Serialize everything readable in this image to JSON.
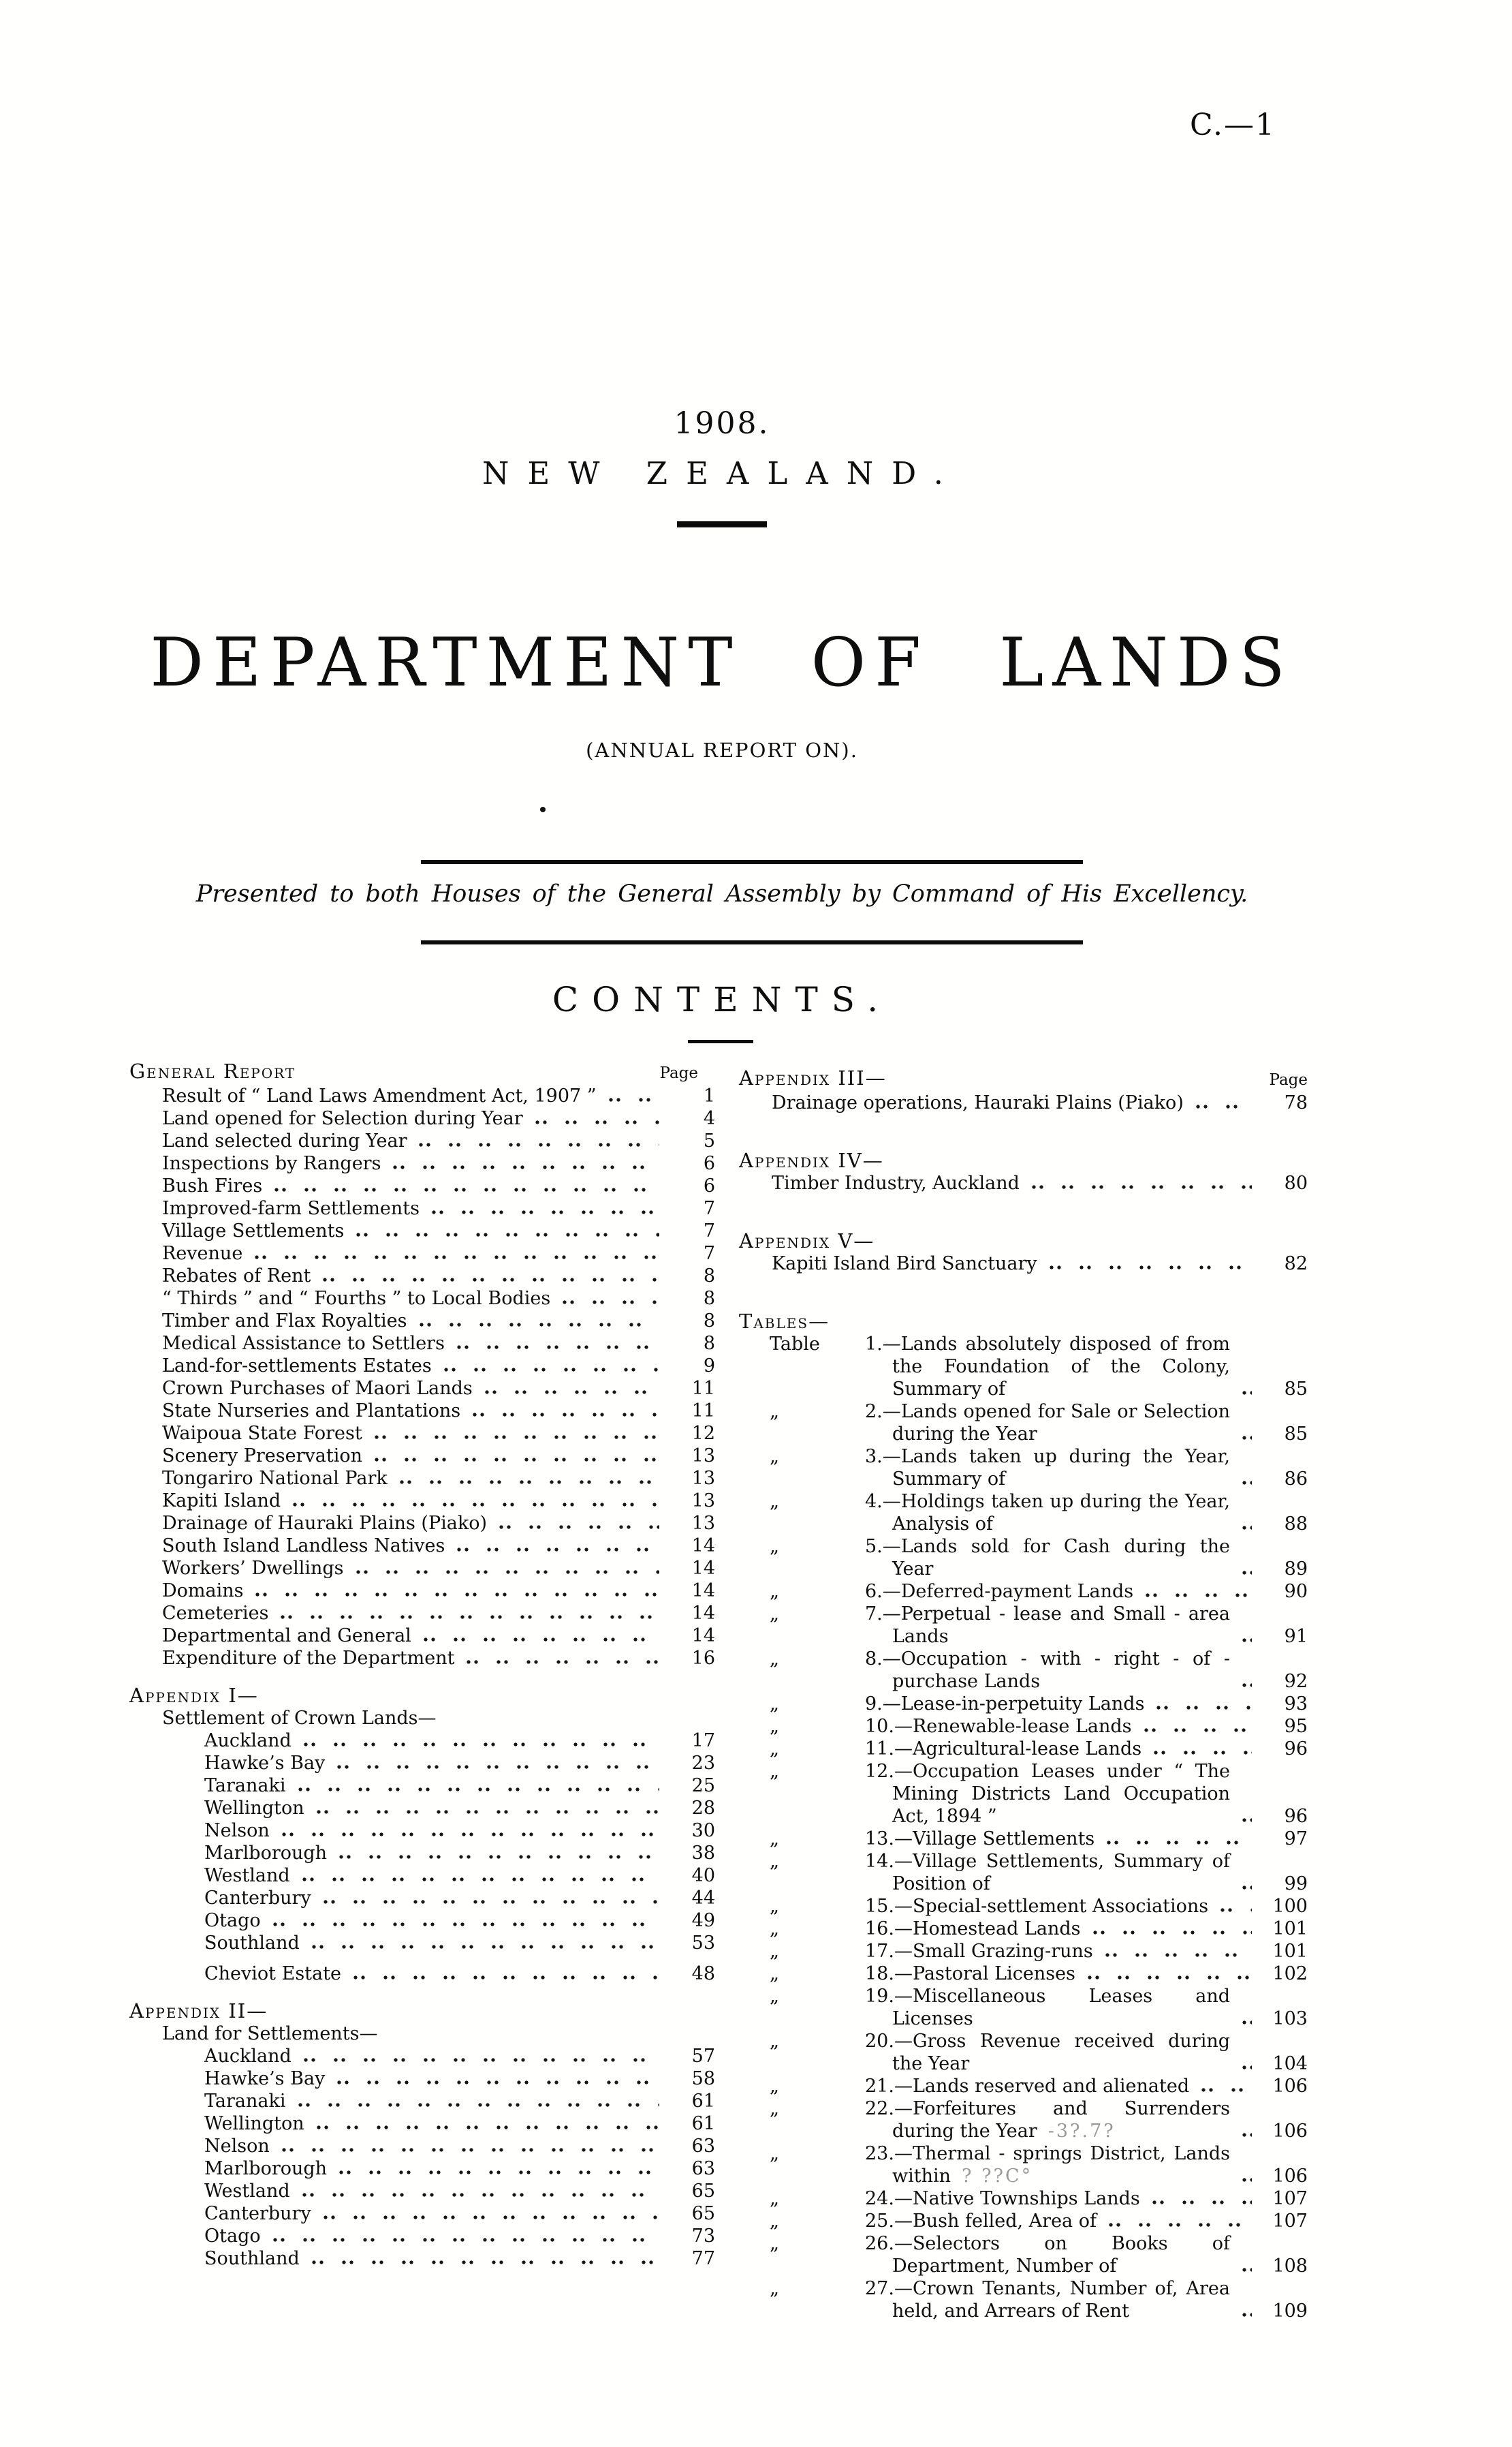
{
  "header": {
    "doc_ref": "C.—1",
    "year": "1908.",
    "country": "NEW ZEALAND.",
    "title": "DEPARTMENT OF LANDS",
    "subtitle": "(ANNUAL REPORT ON).",
    "presented": "Presented to both Houses of the General Assembly by Command of His Excellency.",
    "contents_title": "CONTENTS."
  },
  "contents": {
    "left": {
      "sections": [
        {
          "header": "General Report",
          "page_label": "Page",
          "items": [
            {
              "label": "Result of “ Land Laws Amendment Act, 1907 ”",
              "page": "1",
              "indent": 1
            },
            {
              "label": "Land opened for Selection during Year",
              "page": "4",
              "indent": 1
            },
            {
              "label": "Land selected during Year",
              "page": "5",
              "indent": 1
            },
            {
              "label": "Inspections by Rangers",
              "page": "6",
              "indent": 1
            },
            {
              "label": "Bush Fires",
              "page": "6",
              "indent": 1
            },
            {
              "label": "Improved-farm Settlements",
              "page": "7",
              "indent": 1
            },
            {
              "label": "Village Settlements",
              "page": "7",
              "indent": 1
            },
            {
              "label": "Revenue",
              "page": "7",
              "indent": 1
            },
            {
              "label": "Rebates of Rent",
              "page": "8",
              "indent": 1
            },
            {
              "label": "“ Thirds ” and “ Fourths ” to Local Bodies",
              "page": "8",
              "indent": 1
            },
            {
              "label": "Timber and Flax Royalties",
              "page": "8",
              "indent": 1
            },
            {
              "label": "Medical Assistance to Settlers",
              "page": "8",
              "indent": 1
            },
            {
              "label": "Land-for-settlements Estates",
              "page": "9",
              "indent": 1
            },
            {
              "label": "Crown Purchases of Maori Lands",
              "page": "11",
              "indent": 1
            },
            {
              "label": "State Nurseries and Plantations",
              "page": "11",
              "indent": 1
            },
            {
              "label": "Waipoua State Forest",
              "page": "12",
              "indent": 1
            },
            {
              "label": "Scenery Preservation",
              "page": "13",
              "indent": 1
            },
            {
              "label": "Tongariro National Park",
              "page": "13",
              "indent": 1
            },
            {
              "label": "Kapiti Island",
              "page": "13",
              "indent": 1
            },
            {
              "label": "Drainage of Hauraki Plains (Piako)",
              "page": "13",
              "indent": 1
            },
            {
              "label": "South Island Landless Natives",
              "page": "14",
              "indent": 1
            },
            {
              "label": "Workers’ Dwellings",
              "page": "14",
              "indent": 1
            },
            {
              "label": "Domains",
              "page": "14",
              "indent": 1
            },
            {
              "label": "Cemeteries",
              "page": "14",
              "indent": 1
            },
            {
              "label": "Departmental and General",
              "page": "14",
              "indent": 1
            },
            {
              "label": "Expenditure of the Department",
              "page": "16",
              "indent": 1
            }
          ]
        },
        {
          "header": "Appendix I—",
          "subheader": "Settlement of Crown Lands—",
          "items": [
            {
              "label": "Auckland",
              "page": "17",
              "indent": 2
            },
            {
              "label": "Hawke’s Bay",
              "page": "23",
              "indent": 2
            },
            {
              "label": "Taranaki",
              "page": "25",
              "indent": 2
            },
            {
              "label": "Wellington",
              "page": "28",
              "indent": 2
            },
            {
              "label": "Nelson",
              "page": "30",
              "indent": 2
            },
            {
              "label": "Marlborough",
              "page": "38",
              "indent": 2
            },
            {
              "label": "Westland",
              "page": "40",
              "indent": 2
            },
            {
              "label": "Canterbury",
              "page": "44",
              "indent": 2
            },
            {
              "label": "Otago",
              "page": "49",
              "indent": 2
            },
            {
              "label": "Southland",
              "page": "53",
              "indent": 2
            },
            {
              "label": "Cheviot Estate",
              "page": "48",
              "indent": 2,
              "gap": true
            }
          ]
        },
        {
          "header": "Appendix II—",
          "subheader": "Land for Settlements—",
          "items": [
            {
              "label": "Auckland",
              "page": "57",
              "indent": 2
            },
            {
              "label": "Hawke’s Bay",
              "page": "58",
              "indent": 2
            },
            {
              "label": "Taranaki",
              "page": "61",
              "indent": 2
            },
            {
              "label": "Wellington",
              "page": "61",
              "indent": 2
            },
            {
              "label": "Nelson",
              "page": "63",
              "indent": 2
            },
            {
              "label": "Marlborough",
              "page": "63",
              "indent": 2
            },
            {
              "label": "Westland",
              "page": "65",
              "indent": 2
            },
            {
              "label": "Canterbury",
              "page": "65",
              "indent": 2
            },
            {
              "label": "Otago",
              "page": "73",
              "indent": 2
            },
            {
              "label": "Southland",
              "page": "77",
              "indent": 2
            }
          ]
        }
      ]
    },
    "right": {
      "sections": [
        {
          "header": "Appendix III—",
          "page_label": "Page",
          "items": [
            {
              "label": "Drainage operations, Hauraki Plains (Piako)",
              "page": "78",
              "indent": 1
            }
          ]
        },
        {
          "header": "Appendix IV—",
          "items": [
            {
              "label": "Timber Industry, Auckland",
              "page": "80",
              "indent": 1
            }
          ]
        },
        {
          "header": "Appendix V—",
          "items": [
            {
              "label": "Kapiti Island Bird Sanctuary",
              "page": "82",
              "indent": 1
            }
          ]
        },
        {
          "header": "Tables—",
          "items": [
            {
              "prefix": "Table",
              "label": "1.—Lands absolutely disposed of from the Foundation of the Colony, Summary of",
              "page": "85"
            },
            {
              "prefix": "„",
              "label": "2.—Lands opened for Sale or Selection during the Year",
              "page": "85"
            },
            {
              "prefix": "„",
              "label": "3.—Lands taken up during the Year, Summary of",
              "page": "86"
            },
            {
              "prefix": "„",
              "label": "4.—Holdings taken up during the Year, Analysis of",
              "page": "88"
            },
            {
              "prefix": "„",
              "label": "5.—Lands sold for Cash during the Year",
              "page": "89"
            },
            {
              "prefix": "„",
              "label": "6.—Deferred-payment Lands",
              "page": "90"
            },
            {
              "prefix": "„",
              "label": "7.—Perpetual - lease and Small - area Lands",
              "page": "91"
            },
            {
              "prefix": "„",
              "label": "8.—Occupation - with - right - of - purchase Lands",
              "page": "92"
            },
            {
              "prefix": "„",
              "label": "9.—Lease-in-perpetuity Lands",
              "page": "93"
            },
            {
              "prefix": "„",
              "label": "10.—Renewable-lease Lands",
              "page": "95"
            },
            {
              "prefix": "„",
              "label": "11.—Agricultural-lease Lands",
              "page": "96"
            },
            {
              "prefix": "„",
              "label": "12.—Occupation Leases under “ The Mining Districts Land Occupation Act, 1894 ”",
              "page": "96"
            },
            {
              "prefix": "„",
              "label": "13.—Village Settlements",
              "page": "97"
            },
            {
              "prefix": "„",
              "label": "14.—Village Settlements, Summary of Position of",
              "page": "99"
            },
            {
              "prefix": "„",
              "label": "15.—Special-settlement Associations",
              "page": "100"
            },
            {
              "prefix": "„",
              "label": "16.—Homestead Lands",
              "page": "101"
            },
            {
              "prefix": "„",
              "label": "17.—Small Grazing-runs",
              "page": "101"
            },
            {
              "prefix": "„",
              "label": "18.—Pastoral Licenses",
              "page": "102"
            },
            {
              "prefix": "„",
              "label": "19.—Miscellaneous Leases and Licenses",
              "page": "103"
            },
            {
              "prefix": "„",
              "label": "20.—Gross Revenue received during the Year",
              "page": "104"
            },
            {
              "prefix": "„",
              "label": "21.—Lands reserved and alienated",
              "page": "106"
            },
            {
              "prefix": "„",
              "label": "22.—Forfeitures and Surrenders during the Year",
              "page": "106",
              "artifact": "-3?.7?"
            },
            {
              "prefix": "„",
              "label": "23.—Thermal - springs District, Lands within",
              "page": "106",
              "artifact": "? ??C°"
            },
            {
              "prefix": "„",
              "label": "24.—Native Townships Lands",
              "page": "107"
            },
            {
              "prefix": "„",
              "label": "25.—Bush felled, Area of",
              "page": "107"
            },
            {
              "prefix": "„",
              "label": "26.—Selectors on Books of Department, Number of",
              "page": "108"
            },
            {
              "prefix": "„",
              "label": "27.—Crown Tenants, Number of, Area held, and Arrears of Rent",
              "page": "109"
            }
          ]
        }
      ]
    }
  }
}
